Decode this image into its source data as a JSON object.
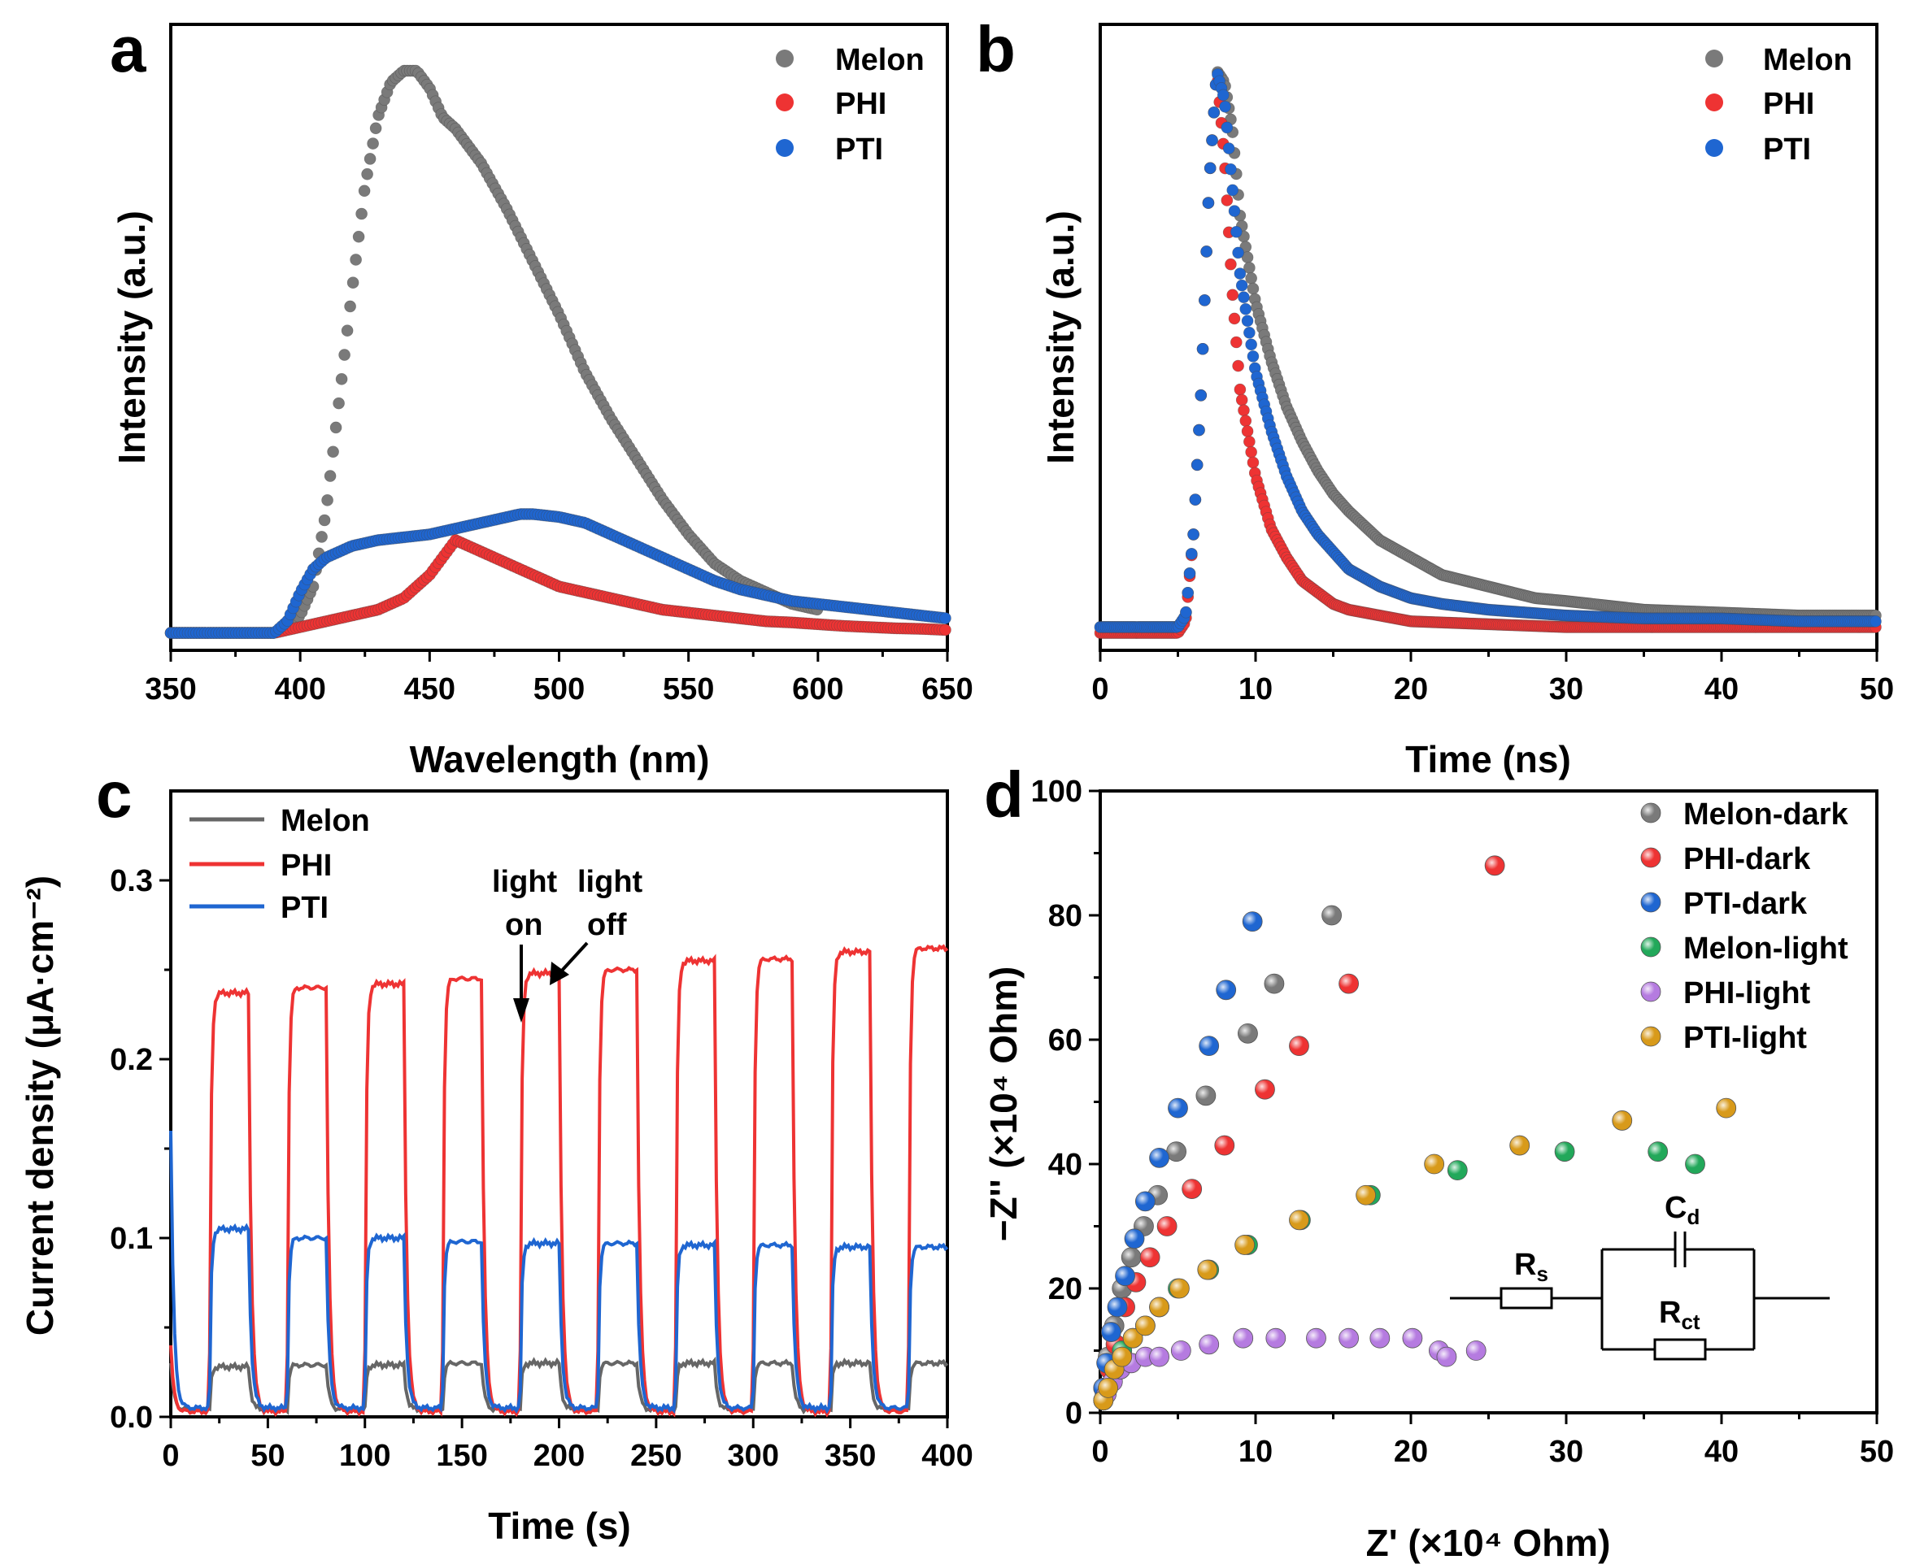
{
  "chart_data": [
    {
      "panel": "a",
      "type": "scatter",
      "xlabel": "Wavelength (nm)",
      "ylabel": "Intensity (a.u.)",
      "xlim": [
        350,
        650
      ],
      "xticks": [
        350,
        400,
        450,
        500,
        550,
        600,
        650
      ],
      "ylim": [
        0,
        1.08
      ],
      "series": [
        {
          "name": "Melon",
          "color": "#7a7a7a",
          "x": [
            350,
            390,
            395,
            400,
            405,
            410,
            415,
            420,
            425,
            430,
            435,
            440,
            445,
            450,
            455,
            460,
            465,
            470,
            480,
            490,
            500,
            510,
            520,
            530,
            540,
            550,
            560,
            570,
            580,
            590,
            600
          ],
          "y": [
            0.03,
            0.03,
            0.04,
            0.06,
            0.11,
            0.24,
            0.43,
            0.62,
            0.8,
            0.92,
            0.98,
            1.0,
            1.0,
            0.97,
            0.92,
            0.9,
            0.87,
            0.84,
            0.76,
            0.67,
            0.58,
            0.48,
            0.4,
            0.33,
            0.26,
            0.2,
            0.15,
            0.12,
            0.1,
            0.08,
            0.07
          ]
        },
        {
          "name": "PHI",
          "color": "#ee3333",
          "x": [
            350,
            390,
            400,
            410,
            420,
            430,
            440,
            450,
            455,
            460,
            465,
            470,
            480,
            490,
            500,
            510,
            520,
            530,
            540,
            550,
            560,
            570,
            580,
            590,
            600,
            610,
            620,
            630,
            640,
            650
          ],
          "y": [
            0.03,
            0.03,
            0.04,
            0.05,
            0.06,
            0.07,
            0.09,
            0.13,
            0.16,
            0.19,
            0.18,
            0.17,
            0.15,
            0.13,
            0.11,
            0.1,
            0.09,
            0.08,
            0.07,
            0.065,
            0.06,
            0.055,
            0.05,
            0.048,
            0.045,
            0.042,
            0.04,
            0.038,
            0.037,
            0.035
          ]
        },
        {
          "name": "PTI",
          "color": "#1f66d1",
          "x": [
            350,
            390,
            395,
            400,
            405,
            410,
            420,
            430,
            440,
            450,
            460,
            470,
            480,
            485,
            490,
            500,
            510,
            520,
            530,
            540,
            550,
            560,
            570,
            580,
            590,
            600,
            610,
            620,
            630,
            640,
            650
          ],
          "y": [
            0.03,
            0.03,
            0.05,
            0.1,
            0.14,
            0.16,
            0.18,
            0.19,
            0.195,
            0.2,
            0.21,
            0.22,
            0.23,
            0.235,
            0.235,
            0.23,
            0.22,
            0.2,
            0.18,
            0.16,
            0.14,
            0.12,
            0.105,
            0.095,
            0.085,
            0.08,
            0.075,
            0.07,
            0.065,
            0.06,
            0.055
          ]
        }
      ],
      "legend": [
        "Melon",
        "PHI",
        "PTI"
      ]
    },
    {
      "panel": "b",
      "type": "scatter",
      "xlabel": "Time (ns)",
      "ylabel": "Intensity (a.u.)",
      "xlim": [
        0,
        50
      ],
      "xticks": [
        0,
        10,
        20,
        30,
        40,
        50
      ],
      "ylim": [
        0,
        1.08
      ],
      "series": [
        {
          "name": "Melon",
          "color": "#7a7a7a",
          "x": [
            0,
            5,
            5.5,
            6,
            6.5,
            7,
            7.5,
            8,
            8.5,
            9,
            10,
            11,
            12,
            13,
            14,
            15,
            16,
            18,
            20,
            22,
            25,
            28,
            30,
            35,
            40,
            45,
            50
          ],
          "y": [
            0.04,
            0.04,
            0.06,
            0.2,
            0.45,
            0.8,
            1.0,
            0.98,
            0.9,
            0.75,
            0.6,
            0.5,
            0.42,
            0.36,
            0.31,
            0.27,
            0.24,
            0.19,
            0.16,
            0.13,
            0.11,
            0.09,
            0.085,
            0.07,
            0.065,
            0.06,
            0.06
          ]
        },
        {
          "name": "PHI",
          "color": "#ee3333",
          "x": [
            0,
            5,
            5.5,
            6,
            6.5,
            7,
            7.5,
            8,
            8.5,
            9,
            10,
            11,
            12,
            13,
            14,
            15,
            16,
            18,
            20,
            25,
            30,
            35,
            40,
            45,
            50
          ],
          "y": [
            0.03,
            0.03,
            0.05,
            0.2,
            0.45,
            0.8,
            1.0,
            0.85,
            0.62,
            0.45,
            0.3,
            0.21,
            0.16,
            0.12,
            0.1,
            0.08,
            0.07,
            0.06,
            0.05,
            0.045,
            0.04,
            0.04,
            0.04,
            0.04,
            0.04
          ]
        },
        {
          "name": "PTI",
          "color": "#1f66d1",
          "x": [
            0,
            5,
            5.5,
            6,
            6.5,
            7,
            7.5,
            8,
            8.5,
            9,
            10,
            11,
            12,
            13,
            14,
            15,
            16,
            18,
            20,
            22,
            25,
            30,
            35,
            40,
            45,
            50
          ],
          "y": [
            0.04,
            0.04,
            0.06,
            0.2,
            0.45,
            0.8,
            1.0,
            0.95,
            0.8,
            0.65,
            0.48,
            0.38,
            0.3,
            0.24,
            0.2,
            0.17,
            0.14,
            0.11,
            0.09,
            0.08,
            0.07,
            0.06,
            0.055,
            0.055,
            0.05,
            0.05
          ]
        }
      ],
      "legend": [
        "Melon",
        "PHI",
        "PTI"
      ]
    },
    {
      "panel": "c",
      "type": "line",
      "xlabel": "Time (s)",
      "ylabel": "Current density (μA·cm⁻²)",
      "xlim": [
        0,
        400
      ],
      "ylim": [
        0,
        0.35
      ],
      "xticks": [
        0,
        50,
        100,
        150,
        200,
        250,
        300,
        350,
        400
      ],
      "yticks": [
        0.0,
        0.1,
        0.2,
        0.3
      ],
      "period_s": 40,
      "light_on_s": 20,
      "series": [
        {
          "name": "Melon",
          "color": "#666666",
          "on_levels": [
            0.028,
            0.029,
            0.029,
            0.03,
            0.03,
            0.03,
            0.03,
            0.03,
            0.03,
            0.03
          ],
          "off_level": 0.004,
          "initial_spike": 0.03
        },
        {
          "name": "PHI",
          "color": "#ee3333",
          "on_levels": [
            0.237,
            0.24,
            0.242,
            0.245,
            0.248,
            0.25,
            0.255,
            0.256,
            0.26,
            0.262
          ],
          "off_level": 0.003,
          "initial_spike": 0.04
        },
        {
          "name": "PTI",
          "color": "#1f66d1",
          "on_levels": [
            0.105,
            0.1,
            0.1,
            0.098,
            0.097,
            0.097,
            0.096,
            0.096,
            0.095,
            0.095
          ],
          "off_level": 0.005,
          "initial_spike": 0.16
        }
      ],
      "annotations": [
        "light",
        "light",
        "on",
        "off"
      ],
      "legend": [
        "Melon",
        "PHI",
        "PTI"
      ]
    },
    {
      "panel": "d",
      "type": "scatter",
      "xlabel": "Z' (×10⁴ Ohm)",
      "ylabel": "−Z'' (×10⁴ Ohm)",
      "xlim": [
        0,
        50
      ],
      "ylim": [
        0,
        100
      ],
      "xticks": [
        0,
        10,
        20,
        30,
        40,
        50
      ],
      "yticks": [
        0,
        20,
        40,
        60,
        80,
        100
      ],
      "series": [
        {
          "name": "Melon-dark",
          "color": "#7a7a7a",
          "x": [
            0.2,
            0.5,
            0.9,
            1.4,
            2.0,
            2.8,
            3.7,
            4.9,
            6.8,
            9.5,
            11.2,
            14.9
          ],
          "y": [
            4,
            9,
            14,
            20,
            25,
            30,
            35,
            42,
            51,
            61,
            69,
            80
          ]
        },
        {
          "name": "PHI-dark",
          "color": "#ee3333",
          "x": [
            0.3,
            0.6,
            1.0,
            1.6,
            2.3,
            3.2,
            4.3,
            5.9,
            8.0,
            10.6,
            12.8,
            16.0,
            25.4
          ],
          "y": [
            3,
            7,
            11,
            17,
            21,
            25,
            30,
            36,
            43,
            52,
            59,
            69,
            88
          ]
        },
        {
          "name": "PTI-dark",
          "color": "#1f66d1",
          "x": [
            0.2,
            0.4,
            0.7,
            1.1,
            1.6,
            2.2,
            2.9,
            3.8,
            5.0,
            7.0,
            8.1,
            9.8
          ],
          "y": [
            4,
            8,
            13,
            17,
            22,
            28,
            34,
            41,
            49,
            59,
            68,
            79
          ]
        },
        {
          "name": "Melon-light",
          "color": "#22a85a",
          "x": [
            0.2,
            0.5,
            0.9,
            1.4,
            2.1,
            2.9,
            3.8,
            5.0,
            7.0,
            9.5,
            12.9,
            17.4,
            23.0,
            29.9,
            35.9,
            38.3
          ],
          "y": [
            2,
            4,
            7,
            10,
            12,
            14,
            17,
            20,
            23,
            27,
            31,
            35,
            39,
            42,
            42,
            40
          ]
        },
        {
          "name": "PHI-light",
          "color": "#b57be0",
          "x": [
            0.2,
            0.4,
            0.8,
            1.3,
            2.0,
            2.9,
            3.8,
            5.2,
            7.0,
            9.2,
            11.3,
            13.9,
            16.0,
            18.0,
            20.1,
            21.8,
            22.3,
            24.2
          ],
          "y": [
            2,
            3,
            5,
            7,
            8,
            9,
            9,
            10,
            11,
            12,
            12,
            12,
            12,
            12,
            12,
            10,
            9,
            10
          ]
        },
        {
          "name": "PTI-light",
          "color": "#d89a1a",
          "x": [
            0.2,
            0.5,
            0.9,
            1.4,
            2.1,
            2.9,
            3.8,
            5.1,
            6.9,
            9.3,
            12.8,
            17.1,
            21.5,
            27.0,
            33.6,
            40.3
          ],
          "y": [
            2,
            4,
            7,
            9,
            12,
            14,
            17,
            20,
            23,
            27,
            31,
            35,
            40,
            43,
            47,
            49
          ]
        }
      ],
      "legend": [
        "Melon-dark",
        "PHI-dark",
        "PTI-dark",
        "Melon-light",
        "PHI-light",
        "PTI-light"
      ],
      "circuit": {
        "r1_base": "R",
        "r1_sub": "s",
        "c_base": "C",
        "c_sub": "d",
        "r2_base": "R",
        "r2_sub": "ct"
      }
    }
  ],
  "panel_labels": [
    "a",
    "b",
    "c",
    "d"
  ]
}
